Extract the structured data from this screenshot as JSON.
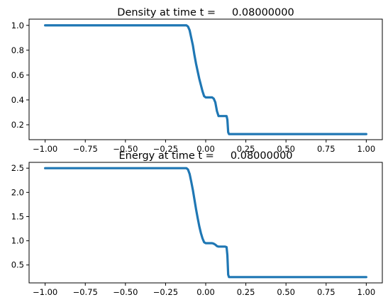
{
  "chart_data": [
    {
      "type": "line",
      "title": "Density at time t =     0.08000000",
      "xlabel": "",
      "ylabel": "",
      "xlim": [
        -1.1,
        1.1
      ],
      "ylim": [
        0.08,
        1.05
      ],
      "xticks": [
        -1.0,
        -0.75,
        -0.5,
        -0.25,
        0.0,
        0.25,
        0.5,
        0.75,
        1.0
      ],
      "xtick_labels": [
        "−1.00",
        "−0.75",
        "−0.50",
        "−0.25",
        "0.00",
        "0.25",
        "0.50",
        "0.75",
        "1.00"
      ],
      "yticks": [
        0.2,
        0.4,
        0.6,
        0.8,
        1.0
      ],
      "ytick_labels": [
        "0.2",
        "0.4",
        "0.6",
        "0.8",
        "1.0"
      ],
      "grid": false,
      "color": "#1f77b4",
      "series": [
        {
          "x": [
            -1.0,
            -0.12,
            -0.11,
            -0.1,
            -0.09,
            -0.08,
            -0.07,
            -0.06,
            -0.05,
            -0.04,
            -0.03,
            -0.02,
            -0.01,
            0.0,
            0.02,
            0.04,
            0.05,
            0.06,
            0.07,
            0.08,
            0.1,
            0.12,
            0.13,
            0.135,
            0.14,
            0.145,
            1.0
          ],
          "y": [
            1.0,
            1.0,
            0.99,
            0.96,
            0.9,
            0.84,
            0.76,
            0.69,
            0.63,
            0.57,
            0.52,
            0.47,
            0.43,
            0.42,
            0.42,
            0.42,
            0.41,
            0.38,
            0.31,
            0.27,
            0.27,
            0.27,
            0.27,
            0.24,
            0.14,
            0.125,
            0.125
          ]
        }
      ]
    },
    {
      "type": "line",
      "title": "Energy at time t =     0.08000000",
      "xlabel": "",
      "ylabel": "",
      "xlim": [
        -1.1,
        1.1
      ],
      "ylim": [
        0.13,
        2.62
      ],
      "xticks": [
        -1.0,
        -0.75,
        -0.5,
        -0.25,
        0.0,
        0.25,
        0.5,
        0.75,
        1.0
      ],
      "xtick_labels": [
        "−1.00",
        "−0.75",
        "−0.50",
        "−0.25",
        "0.00",
        "0.25",
        "0.50",
        "0.75",
        "1.00"
      ],
      "yticks": [
        0.5,
        1.0,
        1.5,
        2.0,
        2.5
      ],
      "ytick_labels": [
        "0.5",
        "1.0",
        "1.5",
        "2.0",
        "2.5"
      ],
      "grid": false,
      "color": "#1f77b4",
      "series": [
        {
          "x": [
            -1.0,
            -0.12,
            -0.11,
            -0.1,
            -0.09,
            -0.08,
            -0.07,
            -0.06,
            -0.05,
            -0.04,
            -0.03,
            -0.02,
            -0.01,
            0.0,
            0.02,
            0.04,
            0.05,
            0.06,
            0.07,
            0.08,
            0.1,
            0.12,
            0.13,
            0.135,
            0.14,
            0.145,
            1.0
          ],
          "y": [
            2.5,
            2.5,
            2.47,
            2.38,
            2.22,
            2.05,
            1.85,
            1.65,
            1.47,
            1.3,
            1.16,
            1.05,
            0.97,
            0.95,
            0.95,
            0.95,
            0.94,
            0.92,
            0.89,
            0.88,
            0.88,
            0.88,
            0.87,
            0.7,
            0.3,
            0.25,
            0.25
          ]
        }
      ]
    }
  ]
}
